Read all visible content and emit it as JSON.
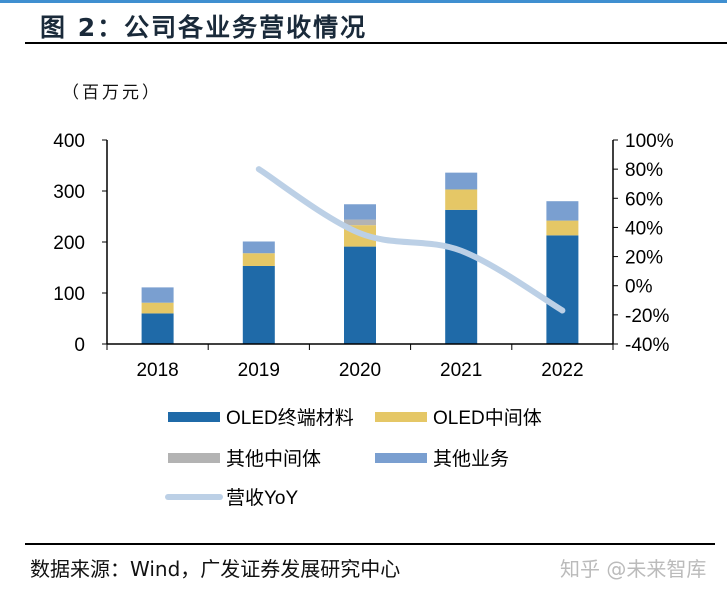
{
  "header": {
    "title": "图 2：公司各业务营收情况",
    "unit": "（百万元）"
  },
  "chart_data": {
    "type": "bar",
    "stacked": true,
    "categories": [
      "2018",
      "2019",
      "2020",
      "2021",
      "2022"
    ],
    "series": [
      {
        "name": "OLED终端材料",
        "color": "#1f6aa8",
        "values": [
          60,
          153,
          191,
          263,
          213
        ]
      },
      {
        "name": "OLED中间体",
        "color": "#e5c766",
        "values": [
          21,
          25,
          42,
          40,
          29
        ]
      },
      {
        "name": "其他中间体",
        "color": "#b3b3b3",
        "values": [
          0,
          0,
          11,
          0,
          0
        ]
      },
      {
        "name": "其他业务",
        "color": "#7a9fd0",
        "values": [
          30,
          23,
          30,
          33,
          38
        ]
      }
    ],
    "line_series": {
      "name": "营收YoY",
      "color": "#bcd0e6",
      "axis": "right",
      "values": [
        null,
        80,
        36,
        24,
        -17
      ]
    },
    "ylim": [
      0,
      400
    ],
    "yticks": [
      "0",
      "100",
      "200",
      "300",
      "400"
    ],
    "y2lim": [
      -40,
      100
    ],
    "y2ticks": [
      "-40%",
      "-20%",
      "0%",
      "20%",
      "40%",
      "60%",
      "80%",
      "100%"
    ],
    "grid": false,
    "legend_placement": "bottom"
  },
  "footer": {
    "source": "数据来源：Wind，广发证券发展研究中心",
    "watermark": "知乎 @未来智库"
  }
}
